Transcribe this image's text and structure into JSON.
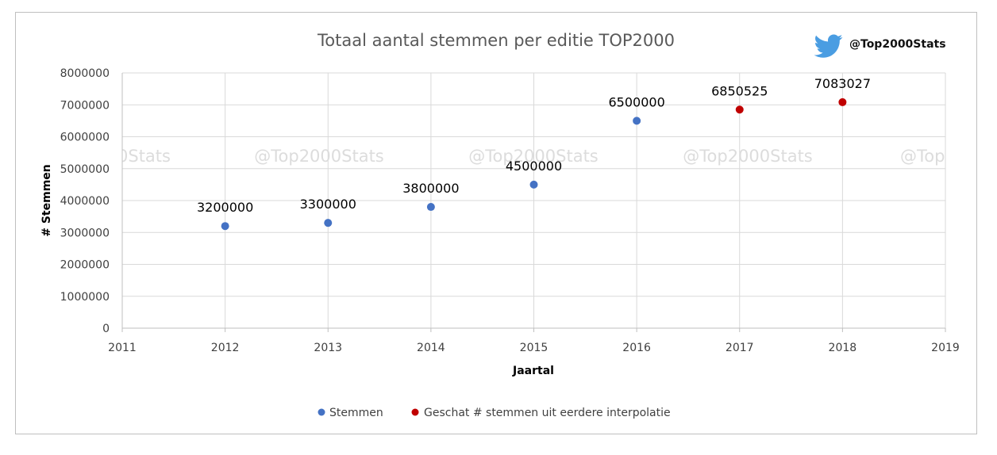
{
  "chart_data": {
    "type": "scatter",
    "title": "Totaal aantal stemmen per editie TOP2000",
    "xlabel": "Jaartal",
    "ylabel": "# Stemmen",
    "xlim": [
      2011,
      2019
    ],
    "ylim": [
      0,
      8000000
    ],
    "x_ticks": [
      2011,
      2012,
      2013,
      2014,
      2015,
      2016,
      2017,
      2018,
      2019
    ],
    "y_ticks": [
      0,
      1000000,
      2000000,
      3000000,
      4000000,
      5000000,
      6000000,
      7000000,
      8000000
    ],
    "grid": true,
    "legend_position": "bottom",
    "series": [
      {
        "name": "Stemmen",
        "color": "#4472c4",
        "points": [
          {
            "x": 2012,
            "y": 3200000,
            "label": "3200000"
          },
          {
            "x": 2013,
            "y": 3300000,
            "label": "3300000"
          },
          {
            "x": 2014,
            "y": 3800000,
            "label": "3800000"
          },
          {
            "x": 2015,
            "y": 4500000,
            "label": "4500000"
          },
          {
            "x": 2016,
            "y": 6500000,
            "label": "6500000"
          }
        ]
      },
      {
        "name": "Geschat # stemmen uit eerdere interpolatie",
        "color": "#c00000",
        "points": [
          {
            "x": 2017,
            "y": 6850525,
            "label": "6850525"
          },
          {
            "x": 2018,
            "y": 7083027,
            "label": "7083027"
          }
        ]
      }
    ]
  },
  "branding": {
    "handle": "@Top2000Stats",
    "icon": "twitter-bird-icon",
    "icon_color": "#4a9de2",
    "watermarks": [
      "0Stats",
      "@Top2000Stats",
      "@Top2000Stats",
      "@Top2000Stats",
      "@Top"
    ]
  }
}
